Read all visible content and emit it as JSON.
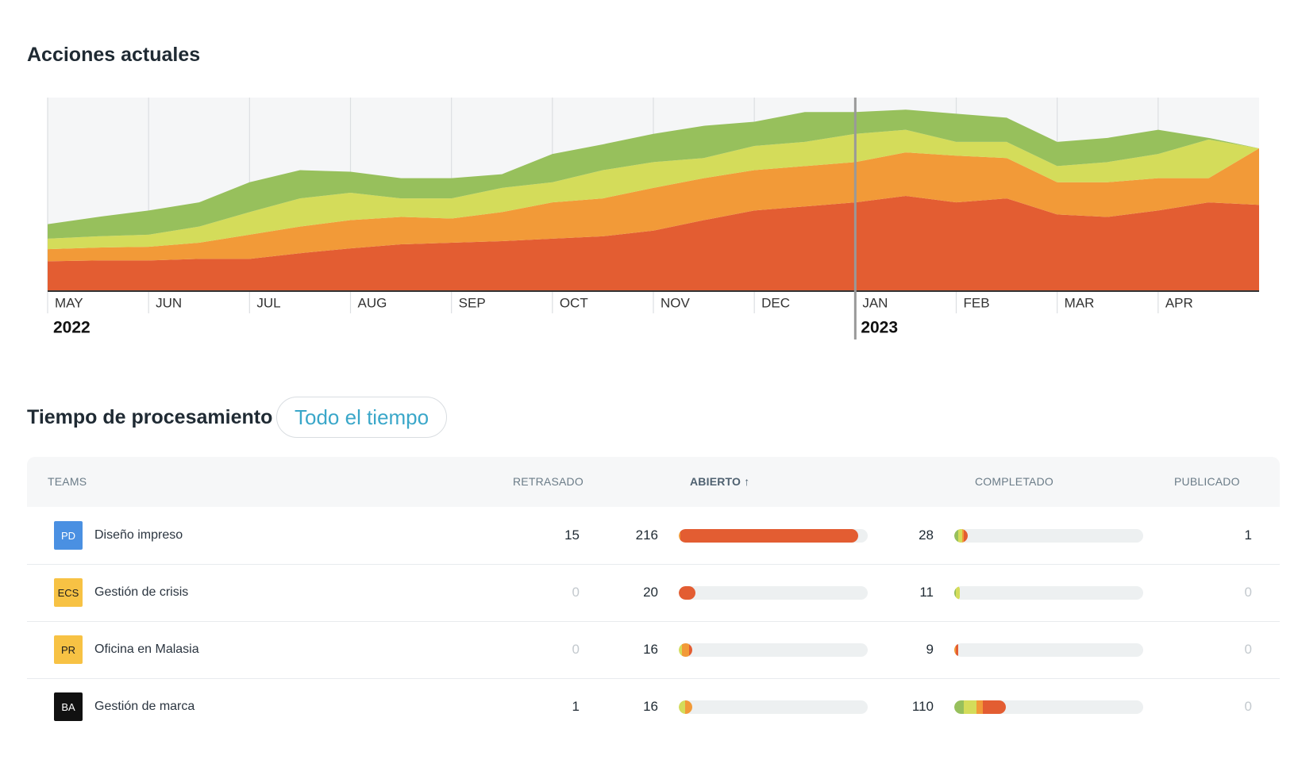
{
  "chart_data": {
    "type": "stacked_area",
    "title": "Acciones actuales",
    "categories": [
      "MAY",
      null,
      "JUN",
      null,
      "JUL",
      null,
      "AUG",
      null,
      "SEP",
      null,
      "OCT",
      null,
      "NOV",
      null,
      "DEC",
      null,
      "JAN",
      null,
      "FEB",
      null,
      "MAR",
      null,
      "APR",
      null,
      null
    ],
    "years": [
      "2022",
      null,
      null,
      null,
      null,
      null,
      null,
      null,
      null,
      null,
      null,
      null,
      null,
      null,
      null,
      null,
      "2023",
      null,
      null,
      null,
      null,
      null,
      null,
      null,
      null
    ],
    "ylim": [
      0,
      240
    ],
    "grid": true,
    "series": [
      {
        "color": "#e35d32",
        "values": [
          37,
          38,
          38,
          40,
          40,
          47,
          53,
          58,
          60,
          62,
          65,
          68,
          75,
          88,
          100,
          105,
          110,
          118,
          110,
          115,
          95,
          92,
          100,
          110,
          107
        ]
      },
      {
        "color": "#f29a38",
        "values": [
          15,
          16,
          17,
          20,
          30,
          33,
          35,
          34,
          30,
          36,
          45,
          47,
          53,
          52,
          50,
          50,
          50,
          54,
          58,
          50,
          40,
          43,
          40,
          30,
          70
        ]
      },
      {
        "color": "#d4dc5a",
        "values": [
          13,
          14,
          15,
          20,
          28,
          35,
          34,
          23,
          25,
          30,
          25,
          35,
          32,
          25,
          30,
          30,
          35,
          28,
          17,
          20,
          20,
          25,
          30,
          48,
          0
        ]
      },
      {
        "color": "#97c05c",
        "values": [
          18,
          24,
          30,
          30,
          37,
          35,
          26,
          25,
          25,
          17,
          35,
          32,
          35,
          40,
          30,
          37,
          27,
          25,
          35,
          30,
          30,
          30,
          30,
          2,
          0
        ]
      }
    ]
  },
  "processing": {
    "title": "Tiempo de procesamiento",
    "filter": "Todo el tiempo",
    "headers": [
      "TEAMS",
      "RETRASADO",
      "ABIERTO ↑",
      "COMPLETADO",
      "PUBLICADO"
    ],
    "segment_colors": [
      "#97c05c",
      "#d4dc5a",
      "#f29a38",
      "#e35d32"
    ],
    "abierto_bar_lim": [
      0,
      227
    ],
    "completado_bar_lim": [
      0,
      400
    ],
    "rows": [
      {
        "badge": "PD",
        "badge_color": "#4a90e2",
        "badge_text_color": "#ffffff",
        "name": "Diseño impreso",
        "retrasado": 15,
        "abierto": 216,
        "abierto_segments": [
          0,
          0,
          2,
          214
        ],
        "completado": 28,
        "completado_segments": [
          9,
          7,
          4,
          8
        ],
        "publicado": 1
      },
      {
        "badge": "ECS",
        "badge_color": "#f7c244",
        "badge_text_color": "#1d1d1d",
        "name": "Gestión de crisis",
        "retrasado": 0,
        "abierto": 20,
        "abierto_segments": [
          0,
          0,
          0,
          20
        ],
        "completado": 11,
        "completado_segments": [
          3,
          8,
          0,
          0
        ],
        "publicado": 0
      },
      {
        "badge": "PR",
        "badge_color": "#f7c244",
        "badge_text_color": "#1d1d1d",
        "name": "Oficina en Malasia",
        "retrasado": 0,
        "abierto": 16,
        "abierto_segments": [
          0,
          4,
          8,
          4
        ],
        "completado": 9,
        "completado_segments": [
          0,
          0,
          4,
          5
        ],
        "publicado": 0
      },
      {
        "badge": "BA",
        "badge_color": "#111111",
        "badge_text_color": "#ffffff",
        "name": "Gestión de marca",
        "retrasado": 1,
        "abierto": 16,
        "abierto_segments": [
          0,
          8,
          8,
          0
        ],
        "completado": 110,
        "completado_segments": [
          20,
          27,
          14,
          49
        ],
        "publicado": 0
      }
    ]
  }
}
